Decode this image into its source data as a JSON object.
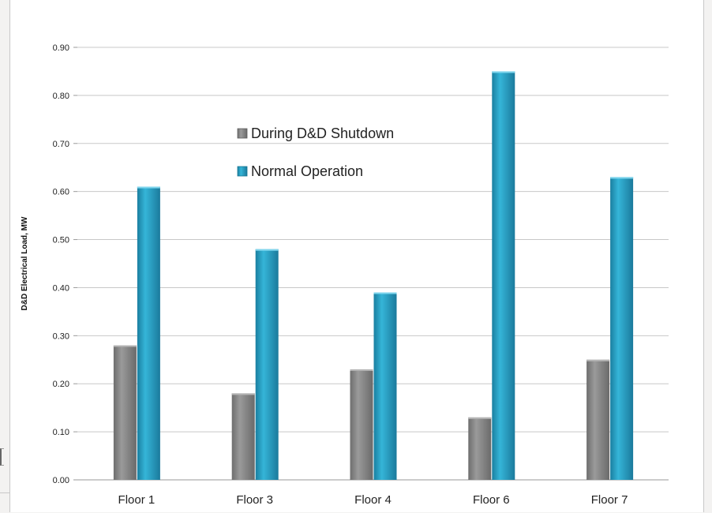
{
  "chart_data": {
    "type": "bar",
    "title": "",
    "xlabel": "",
    "ylabel": "D&D Electrical Load, MW",
    "ylim": [
      0,
      0.9
    ],
    "yticks": [
      "0.00",
      "0.10",
      "0.20",
      "0.30",
      "0.40",
      "0.50",
      "0.60",
      "0.70",
      "0.80",
      "0.90"
    ],
    "ytick_values": [
      0,
      0.1,
      0.2,
      0.3,
      0.4,
      0.5,
      0.6,
      0.7,
      0.8,
      0.9
    ],
    "grid": true,
    "legend_placement": "upper-middle",
    "categories": [
      "Floor 1",
      "Floor 3",
      "Floor 4",
      "Floor 6",
      "Floor 7"
    ],
    "series": [
      {
        "name": "During D&D Shutdown",
        "values": [
          0.28,
          0.18,
          0.23,
          0.13,
          0.25
        ],
        "color": "#8c8c8c"
      },
      {
        "name": "Normal Operation",
        "values": [
          0.61,
          0.48,
          0.39,
          0.85,
          0.63
        ],
        "color": "#2aa6c8"
      }
    ]
  }
}
